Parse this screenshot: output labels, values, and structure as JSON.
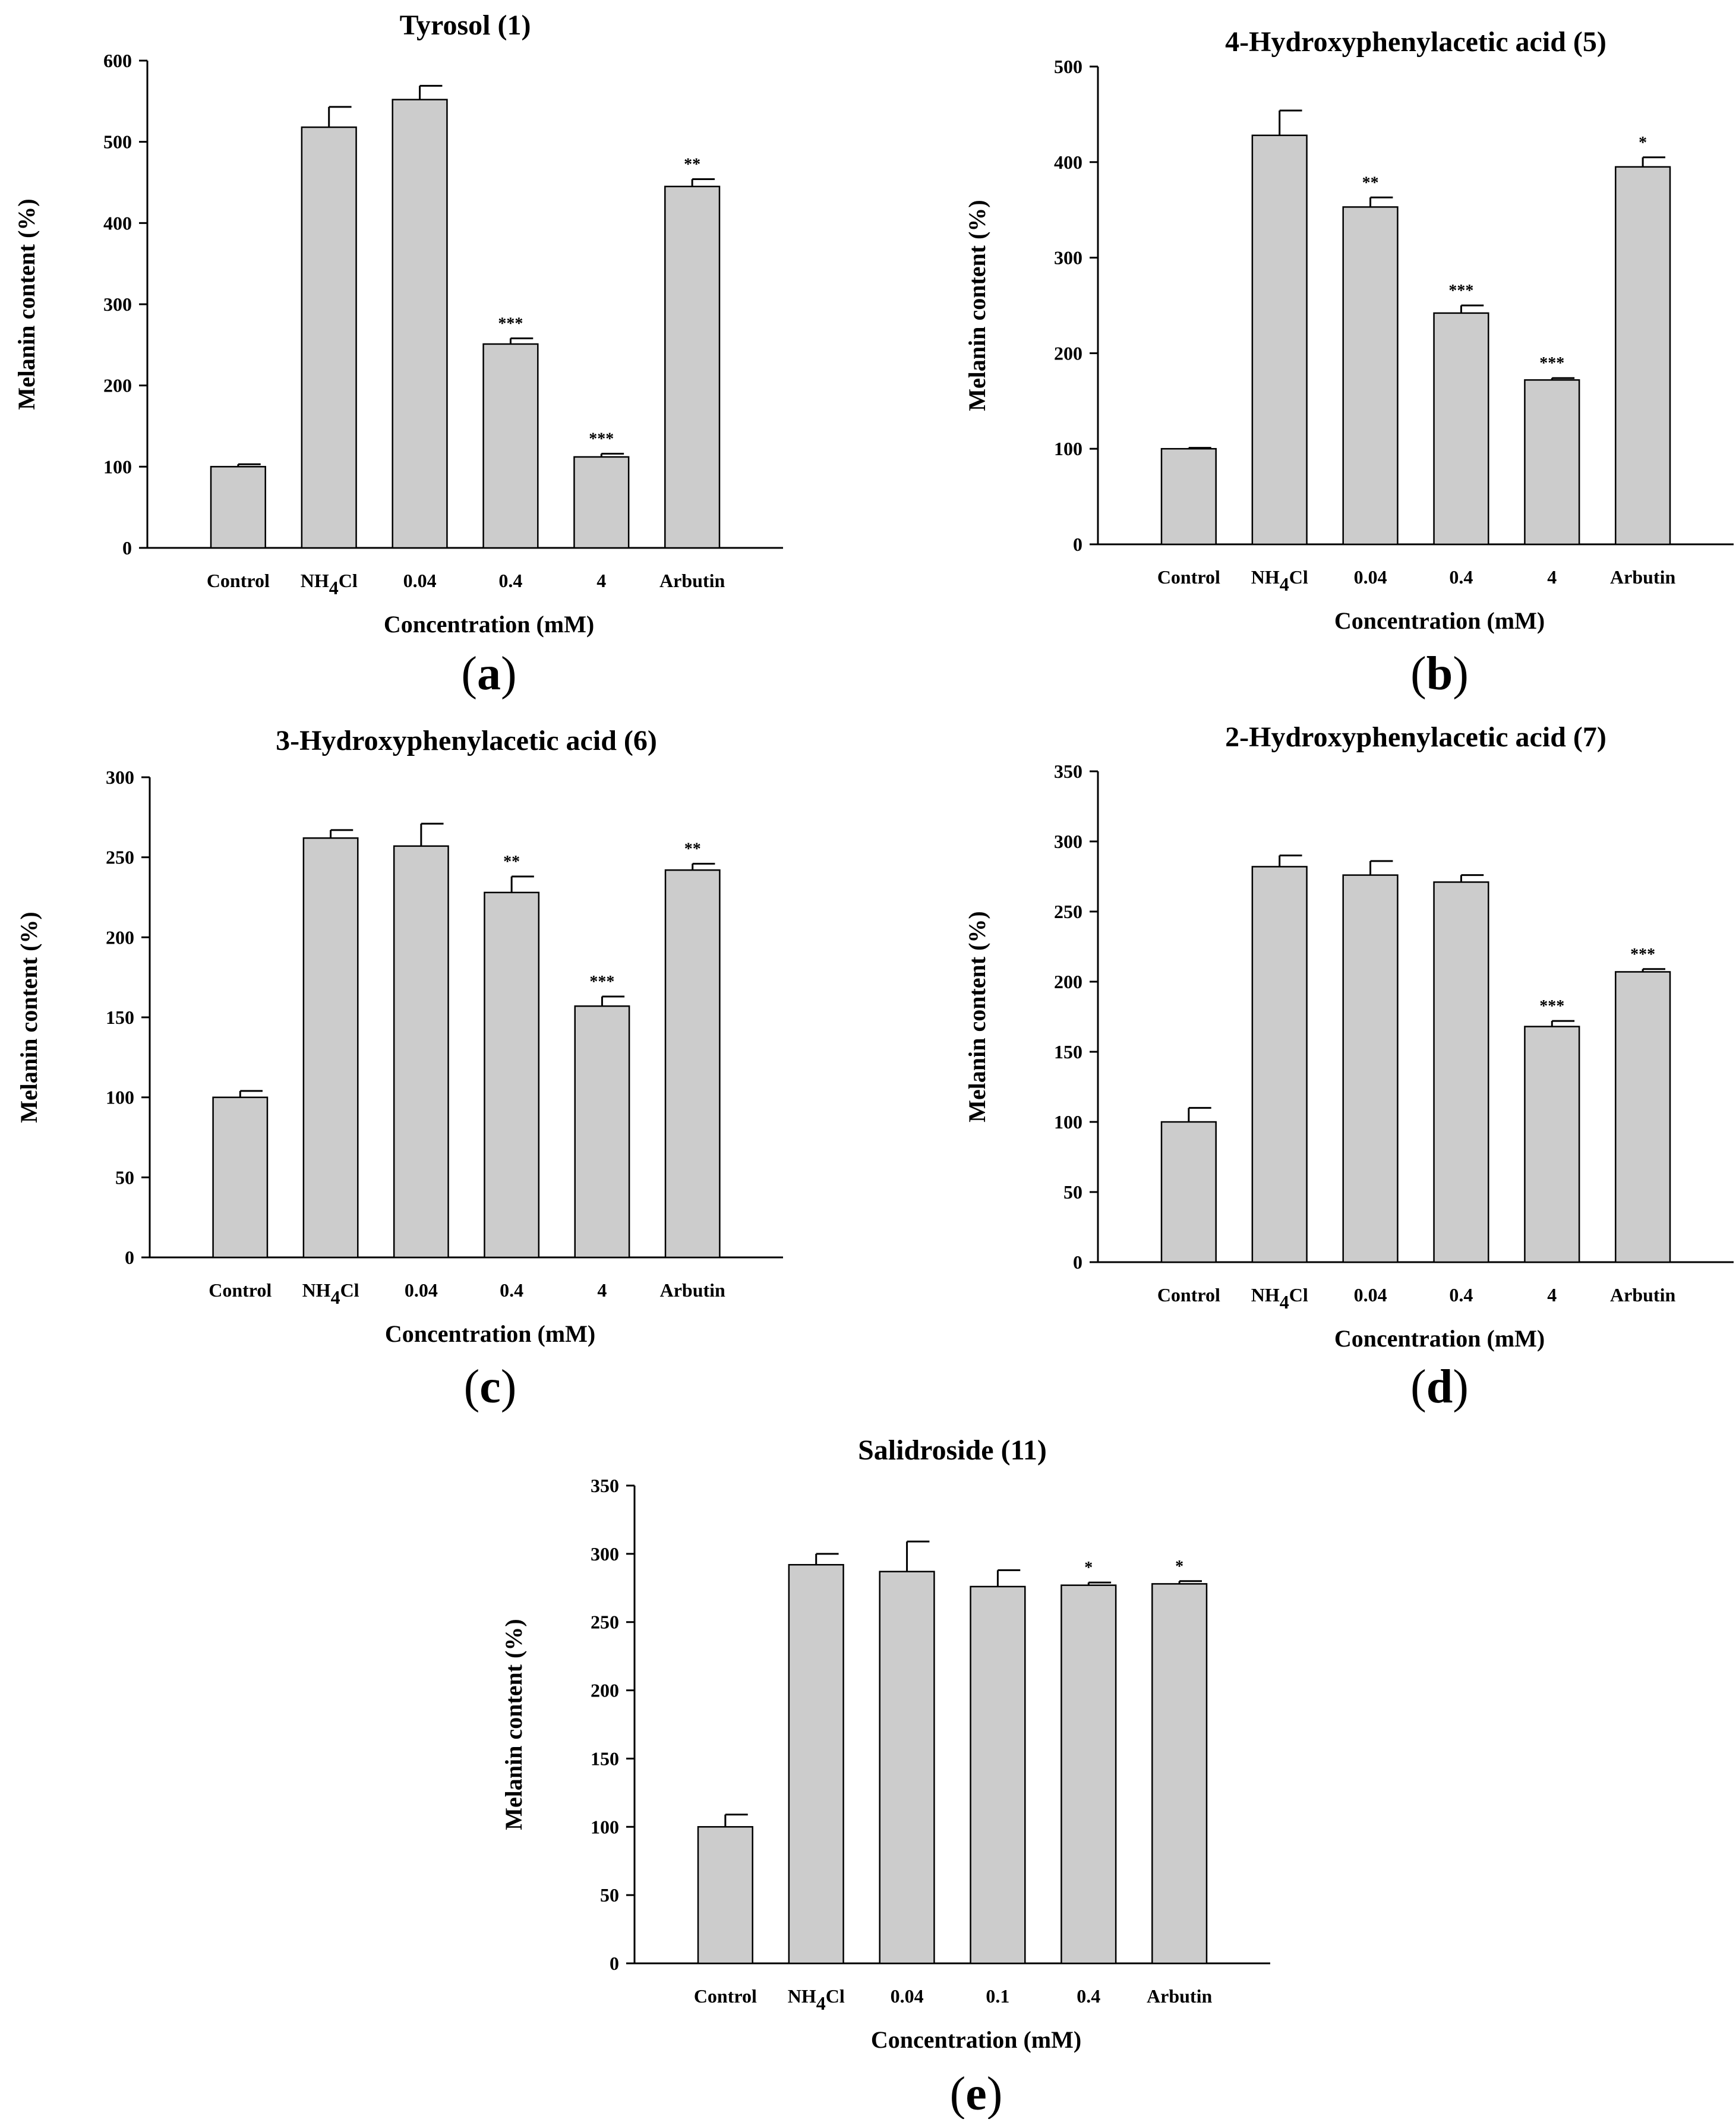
{
  "chart_data": [
    {
      "id": "a",
      "type": "bar",
      "title": "Tyrosol (1)",
      "xlabel": "Concentration (mM)",
      "ylabel": "Melanin content (%)",
      "ylim": [
        0,
        600
      ],
      "yticks": [
        0,
        100,
        200,
        300,
        400,
        500,
        600
      ],
      "categories": [
        {
          "main": "Control"
        },
        {
          "main": "NH",
          "sub": "4",
          "rest": "Cl"
        },
        {
          "main": "0.04"
        },
        {
          "main": "0.4"
        },
        {
          "main": "4"
        },
        {
          "main": "Arbutin"
        }
      ],
      "values": [
        100,
        518,
        552,
        251,
        112,
        445
      ],
      "errors": [
        3,
        25,
        17,
        7,
        4,
        9
      ],
      "significance": [
        "",
        "",
        "",
        "***",
        "***",
        "**"
      ],
      "panel_label": "a"
    },
    {
      "id": "b",
      "type": "bar",
      "title": "4-Hydroxyphenylacetic acid (5)",
      "xlabel": "Concentration (mM)",
      "ylabel": "Melanin content (%)",
      "ylim": [
        0,
        500
      ],
      "yticks": [
        0,
        100,
        200,
        300,
        400,
        500
      ],
      "categories": [
        {
          "main": "Control"
        },
        {
          "main": "NH",
          "sub": "4",
          "rest": "Cl"
        },
        {
          "main": "0.04"
        },
        {
          "main": "0.4"
        },
        {
          "main": "4"
        },
        {
          "main": "Arbutin"
        }
      ],
      "values": [
        100,
        428,
        353,
        242,
        172,
        395
      ],
      "errors": [
        1,
        26,
        10,
        8,
        2,
        10
      ],
      "significance": [
        "",
        "",
        "**",
        "***",
        "***",
        "*"
      ],
      "panel_label": "b"
    },
    {
      "id": "c",
      "type": "bar",
      "title": "3-Hydroxyphenylacetic acid (6)",
      "xlabel": "Concentration (mM)",
      "ylabel": "Melanin content (%)",
      "ylim": [
        0,
        300
      ],
      "yticks": [
        0,
        50,
        100,
        150,
        200,
        250,
        300
      ],
      "categories": [
        {
          "main": "Control"
        },
        {
          "main": "NH",
          "sub": "4",
          "rest": "Cl"
        },
        {
          "main": "0.04"
        },
        {
          "main": "0.4"
        },
        {
          "main": "4"
        },
        {
          "main": "Arbutin"
        }
      ],
      "values": [
        100,
        262,
        257,
        228,
        157,
        242
      ],
      "errors": [
        4,
        5,
        14,
        10,
        6,
        4
      ],
      "significance": [
        "",
        "",
        "",
        "**",
        "***",
        "**"
      ],
      "panel_label": "c"
    },
    {
      "id": "d",
      "type": "bar",
      "title": "2-Hydroxyphenylacetic acid (7)",
      "xlabel": "Concentration (mM)",
      "ylabel": "Melanin content (%)",
      "ylim": [
        0,
        350
      ],
      "yticks": [
        0,
        50,
        100,
        150,
        200,
        250,
        300,
        350
      ],
      "categories": [
        {
          "main": "Control"
        },
        {
          "main": "NH",
          "sub": "4",
          "rest": "Cl"
        },
        {
          "main": "0.04"
        },
        {
          "main": "0.4"
        },
        {
          "main": "4"
        },
        {
          "main": "Arbutin"
        }
      ],
      "values": [
        100,
        282,
        276,
        271,
        168,
        207
      ],
      "errors": [
        10,
        8,
        10,
        5,
        4,
        2
      ],
      "significance": [
        "",
        "",
        "",
        "",
        "***",
        "***"
      ],
      "panel_label": "d"
    },
    {
      "id": "e",
      "type": "bar",
      "title": "Salidroside (11)",
      "xlabel": "Concentration (mM)",
      "ylabel": "Melanin content (%)",
      "ylim": [
        0,
        350
      ],
      "yticks": [
        0,
        50,
        100,
        150,
        200,
        250,
        300,
        350
      ],
      "categories": [
        {
          "main": "Control"
        },
        {
          "main": "NH",
          "sub": "4",
          "rest": "Cl"
        },
        {
          "main": "0.04"
        },
        {
          "main": "0.1"
        },
        {
          "main": "0.4"
        },
        {
          "main": "Arbutin"
        }
      ],
      "values": [
        100,
        292,
        287,
        276,
        277,
        278
      ],
      "errors": [
        9,
        8,
        22,
        12,
        2,
        2
      ],
      "significance": [
        "",
        "",
        "",
        "",
        "*",
        "*"
      ],
      "panel_label": "e"
    }
  ]
}
